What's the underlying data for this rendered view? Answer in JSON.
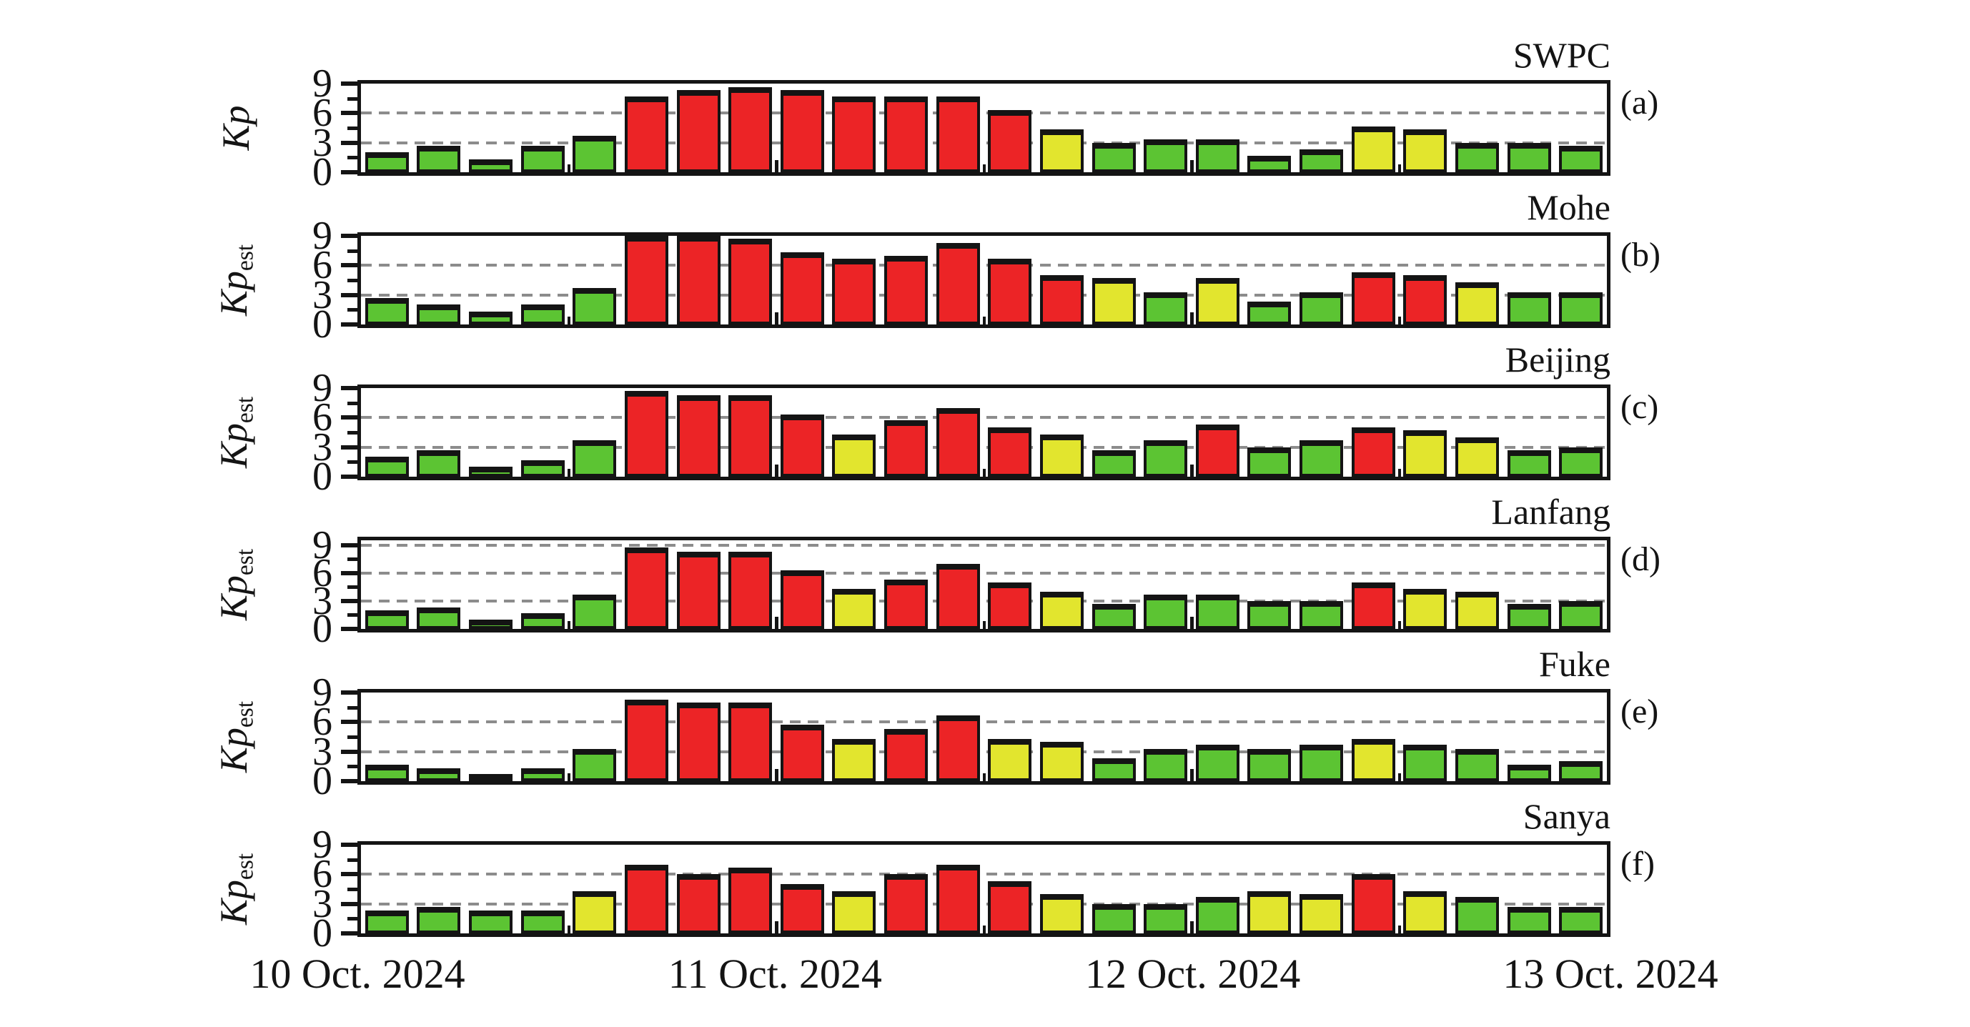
{
  "figure": {
    "background": "#ffffff",
    "x_axis": {
      "labels": [
        "10 Oct. 2024",
        "11 Oct. 2024",
        "12 Oct. 2024",
        "13 Oct. 2024"
      ],
      "bars_per_day": 8,
      "days": 3
    },
    "y_axis": {
      "major_ticks": [
        0,
        3,
        6,
        9
      ],
      "tick_labels": {
        "0": "0",
        "3": "3",
        "6": "6",
        "9": "9"
      },
      "minor_ticks": [
        1.5,
        4.5,
        7.5
      ]
    },
    "colors": {
      "quiet_green": "#5CC433",
      "active_yellow": "#E2E52E",
      "storm_red": "#EC2426",
      "grid_gray": "#8C8C8C",
      "ink": "#141414"
    },
    "color_rules": {
      "red_min": 5,
      "yellow_min": 4
    }
  },
  "chart_data": [
    {
      "type": "bar",
      "panel": "a",
      "title": "SWPC",
      "panel_label": "(a)",
      "ylabel": "Kp",
      "ylabel_subscript": "",
      "ylim": [
        0,
        9
      ],
      "grid_values": [
        3,
        6
      ],
      "values": [
        2,
        2.67,
        1.33,
        2.67,
        3.67,
        7.67,
        8.33,
        8.67,
        8.33,
        7.67,
        7.67,
        7.67,
        6.33,
        4.33,
        3,
        3.33,
        3.33,
        1.67,
        2.33,
        4.67,
        4.33,
        3,
        3,
        2.67
      ]
    },
    {
      "type": "bar",
      "panel": "b",
      "title": "Mohe",
      "panel_label": "(b)",
      "ylabel": "Kp",
      "ylabel_subscript": "est",
      "ylim": [
        0,
        9
      ],
      "grid_values": [
        3,
        6
      ],
      "values": [
        2.7,
        2,
        1.3,
        2,
        3.7,
        9,
        9,
        8.7,
        7.3,
        6.7,
        7,
        8.3,
        6.7,
        5,
        4.7,
        3.3,
        4.7,
        2.3,
        3.3,
        5.3,
        5,
        4.3,
        3.3,
        3.3
      ]
    },
    {
      "type": "bar",
      "panel": "c",
      "title": "Beijing",
      "panel_label": "(c)",
      "ylabel": "Kp",
      "ylabel_subscript": "est",
      "ylim": [
        0,
        9
      ],
      "grid_values": [
        3,
        6
      ],
      "values": [
        2,
        2.7,
        1,
        1.7,
        3.7,
        8.7,
        8.3,
        8.3,
        6.3,
        4.3,
        5.7,
        7,
        5,
        4.3,
        2.7,
        3.7,
        5.3,
        3,
        3.7,
        5,
        4.7,
        4,
        2.7,
        3
      ]
    },
    {
      "type": "bar",
      "panel": "d",
      "title": "Lanfang",
      "panel_label": "(d)",
      "ylabel": "Kp",
      "ylabel_subscript": "est",
      "ylim": [
        0,
        9.5
      ],
      "grid_values": [
        3,
        6,
        9
      ],
      "values": [
        2,
        2.3,
        1,
        1.7,
        3.7,
        8.7,
        8.3,
        8.3,
        6.3,
        4.3,
        5.3,
        7,
        5,
        4,
        2.7,
        3.7,
        3.7,
        3,
        3,
        5,
        4.3,
        4,
        2.7,
        3
      ]
    },
    {
      "type": "bar",
      "panel": "e",
      "title": "Fuke",
      "panel_label": "(e)",
      "ylabel": "Kp",
      "ylabel_subscript": "est",
      "ylim": [
        0,
        9
      ],
      "grid_values": [
        3,
        6
      ],
      "values": [
        1.7,
        1.3,
        0.7,
        1.3,
        3.3,
        8.3,
        8,
        8,
        5.7,
        4.3,
        5.3,
        6.7,
        4.3,
        4,
        2.3,
        3.3,
        3.7,
        3.3,
        3.7,
        4.3,
        3.7,
        3.3,
        1.7,
        2
      ]
    },
    {
      "type": "bar",
      "panel": "f",
      "title": "Sanya",
      "panel_label": "(f)",
      "ylabel": "Kp",
      "ylabel_subscript": "est",
      "ylim": [
        0,
        9
      ],
      "grid_values": [
        3,
        6
      ],
      "values": [
        2.3,
        2.7,
        2.3,
        2.3,
        4.3,
        7,
        6,
        6.7,
        5,
        4.3,
        6,
        7,
        5.3,
        4,
        3,
        3,
        3.7,
        4.3,
        4,
        6,
        4.3,
        3.7,
        2.7,
        2.7
      ]
    }
  ]
}
